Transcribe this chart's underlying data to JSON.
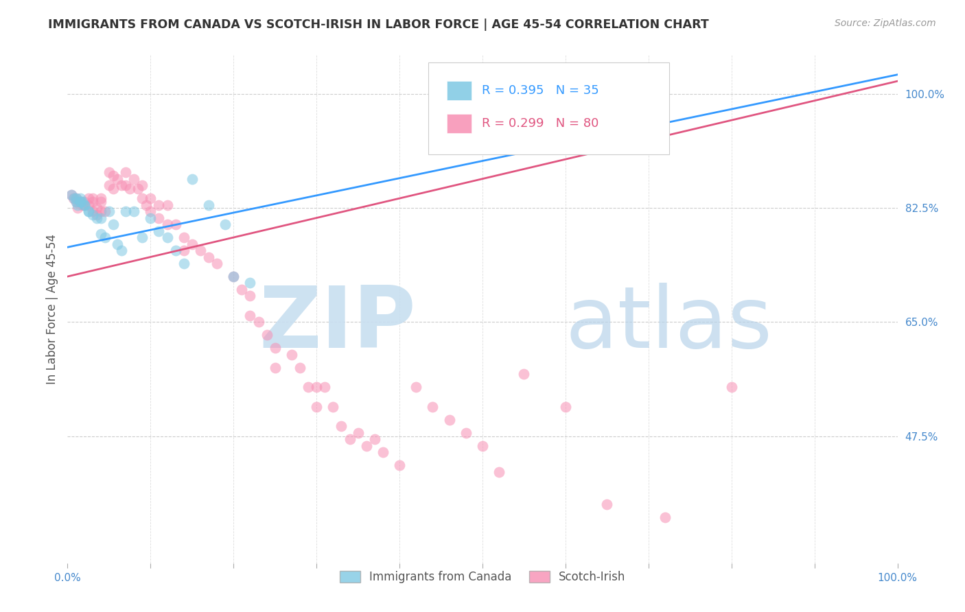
{
  "title": "IMMIGRANTS FROM CANADA VS SCOTCH-IRISH IN LABOR FORCE | AGE 45-54 CORRELATION CHART",
  "source": "Source: ZipAtlas.com",
  "ylabel": "In Labor Force | Age 45-54",
  "legend_label1": "Immigrants from Canada",
  "legend_label2": "Scotch-Irish",
  "r1": 0.395,
  "n1": 35,
  "r2": 0.299,
  "n2": 80,
  "color1": "#7ec8e3",
  "color2": "#f78fb3",
  "line_color1": "#3399ff",
  "line_color2": "#e05580",
  "background_color": "#ffffff",
  "canada_line": [
    0.0,
    0.765,
    1.0,
    1.03
  ],
  "scotch_line": [
    0.0,
    0.72,
    1.0,
    1.02
  ],
  "ylim": [
    0.28,
    1.06
  ],
  "xlim": [
    0.0,
    1.0
  ],
  "yticks": [
    1.0,
    0.825,
    0.65,
    0.475
  ],
  "ytick_labels": [
    "100.0%",
    "82.5%",
    "65.0%",
    "47.5%"
  ],
  "canada_x": [
    0.005,
    0.008,
    0.01,
    0.01,
    0.012,
    0.015,
    0.015,
    0.015,
    0.018,
    0.02,
    0.02,
    0.025,
    0.025,
    0.03,
    0.035,
    0.04,
    0.04,
    0.045,
    0.05,
    0.055,
    0.06,
    0.065,
    0.07,
    0.08,
    0.09,
    0.1,
    0.11,
    0.12,
    0.13,
    0.14,
    0.15,
    0.17,
    0.19,
    0.2,
    0.22
  ],
  "canada_y": [
    0.845,
    0.84,
    0.835,
    0.84,
    0.83,
    0.835,
    0.835,
    0.84,
    0.835,
    0.83,
    0.83,
    0.82,
    0.82,
    0.815,
    0.81,
    0.81,
    0.785,
    0.78,
    0.82,
    0.8,
    0.77,
    0.76,
    0.82,
    0.82,
    0.78,
    0.81,
    0.79,
    0.78,
    0.76,
    0.74,
    0.87,
    0.83,
    0.8,
    0.72,
    0.71
  ],
  "scotch_x": [
    0.005,
    0.007,
    0.01,
    0.01,
    0.012,
    0.015,
    0.018,
    0.02,
    0.02,
    0.025,
    0.025,
    0.03,
    0.03,
    0.03,
    0.035,
    0.035,
    0.04,
    0.04,
    0.04,
    0.045,
    0.05,
    0.05,
    0.055,
    0.055,
    0.06,
    0.065,
    0.07,
    0.07,
    0.075,
    0.08,
    0.085,
    0.09,
    0.09,
    0.095,
    0.1,
    0.1,
    0.11,
    0.11,
    0.12,
    0.12,
    0.13,
    0.14,
    0.14,
    0.15,
    0.16,
    0.17,
    0.18,
    0.2,
    0.21,
    0.22,
    0.22,
    0.23,
    0.24,
    0.25,
    0.25,
    0.27,
    0.28,
    0.29,
    0.3,
    0.3,
    0.31,
    0.32,
    0.33,
    0.34,
    0.35,
    0.36,
    0.37,
    0.38,
    0.4,
    0.42,
    0.44,
    0.46,
    0.48,
    0.5,
    0.52,
    0.55,
    0.6,
    0.65,
    0.72,
    0.8
  ],
  "scotch_y": [
    0.845,
    0.84,
    0.835,
    0.84,
    0.825,
    0.835,
    0.83,
    0.835,
    0.83,
    0.84,
    0.83,
    0.84,
    0.835,
    0.82,
    0.825,
    0.815,
    0.84,
    0.835,
    0.82,
    0.82,
    0.88,
    0.86,
    0.875,
    0.855,
    0.87,
    0.86,
    0.88,
    0.86,
    0.855,
    0.87,
    0.855,
    0.86,
    0.84,
    0.83,
    0.84,
    0.82,
    0.83,
    0.81,
    0.83,
    0.8,
    0.8,
    0.78,
    0.76,
    0.77,
    0.76,
    0.75,
    0.74,
    0.72,
    0.7,
    0.69,
    0.66,
    0.65,
    0.63,
    0.61,
    0.58,
    0.6,
    0.58,
    0.55,
    0.55,
    0.52,
    0.55,
    0.52,
    0.49,
    0.47,
    0.48,
    0.46,
    0.47,
    0.45,
    0.43,
    0.55,
    0.52,
    0.5,
    0.48,
    0.46,
    0.42,
    0.57,
    0.52,
    0.37,
    0.35,
    0.55
  ]
}
